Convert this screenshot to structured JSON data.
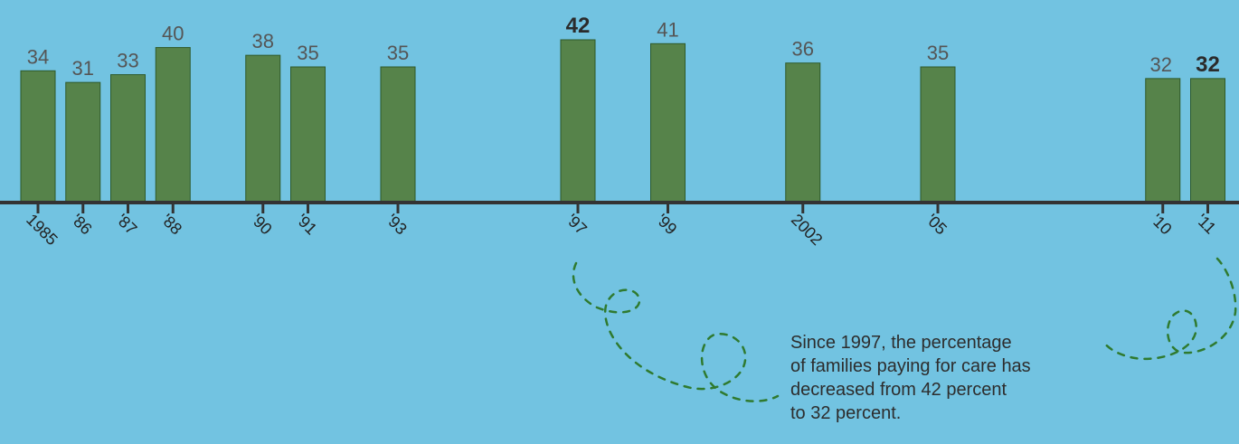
{
  "chart_data": {
    "type": "bar",
    "title": "",
    "xlabel": "",
    "ylabel": "",
    "categories": [
      "1985",
      "'86",
      "'87",
      "'88",
      "'90",
      "'91",
      "'93",
      "'97",
      "'99",
      "2002",
      "'05",
      "'10",
      "'11"
    ],
    "x": [
      1985,
      1986,
      1987,
      1988,
      1990,
      1991,
      1993,
      1997,
      1999,
      2002,
      2005,
      2010,
      2011
    ],
    "values": [
      34,
      31,
      33,
      40,
      38,
      35,
      35,
      42,
      41,
      36,
      35,
      32,
      32
    ],
    "highlight": [
      "'97",
      "'11"
    ],
    "ylim": [
      0,
      42
    ],
    "grid": false,
    "colors": {
      "bar": "#56834a",
      "bar_edge": "#2f5a2a",
      "axis": "#333333",
      "label": "#555555",
      "highlight_label": "#2b2b2b",
      "swirl": "#2f7a2f"
    }
  },
  "annotation": {
    "lines": [
      "Since 1997, the percentage",
      "of families paying for care has",
      "decreased from 42 percent",
      "to 32 percent."
    ]
  }
}
